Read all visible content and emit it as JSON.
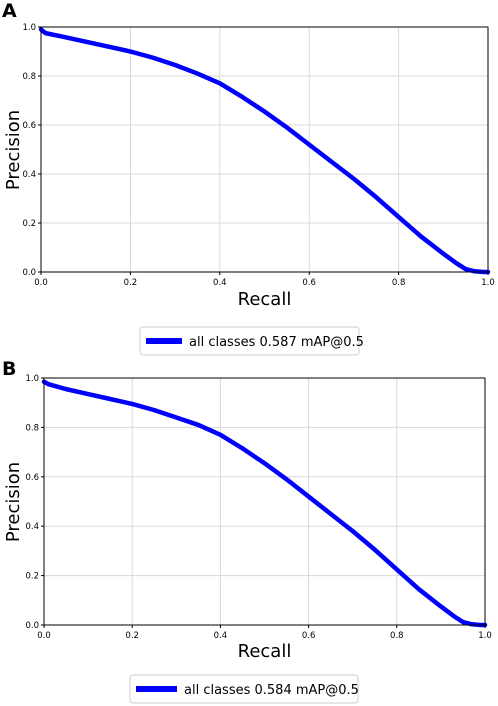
{
  "chart_data": [
    {
      "panel": "A",
      "type": "line",
      "title": "",
      "xlabel": "Recall",
      "ylabel": "Precision",
      "xlim": [
        0.0,
        1.0
      ],
      "ylim": [
        0.0,
        1.0
      ],
      "xticks": [
        "0.0",
        "0.2",
        "0.4",
        "0.6",
        "0.8",
        "1.0"
      ],
      "yticks": [
        "0.0",
        "0.2",
        "0.4",
        "0.6",
        "0.8",
        "1.0"
      ],
      "grid": true,
      "legend_position": "below",
      "series": [
        {
          "name": "all classes 0.587 mAP@0.5",
          "color": "#0000ff",
          "x": [
            0.0,
            0.01,
            0.05,
            0.1,
            0.15,
            0.2,
            0.25,
            0.3,
            0.35,
            0.4,
            0.45,
            0.5,
            0.55,
            0.6,
            0.65,
            0.7,
            0.75,
            0.8,
            0.85,
            0.9,
            0.93,
            0.95,
            0.97,
            0.99,
            1.0
          ],
          "y": [
            0.99,
            0.975,
            0.96,
            0.94,
            0.92,
            0.9,
            0.875,
            0.845,
            0.81,
            0.77,
            0.715,
            0.655,
            0.59,
            0.52,
            0.45,
            0.38,
            0.305,
            0.225,
            0.145,
            0.075,
            0.035,
            0.012,
            0.003,
            0.0,
            0.0
          ]
        }
      ]
    },
    {
      "panel": "B",
      "type": "line",
      "title": "",
      "xlabel": "Recall",
      "ylabel": "Precision",
      "xlim": [
        0.0,
        1.0
      ],
      "ylim": [
        0.0,
        1.0
      ],
      "xticks": [
        "0.0",
        "0.2",
        "0.4",
        "0.6",
        "0.8",
        "1.0"
      ],
      "yticks": [
        "0.0",
        "0.2",
        "0.4",
        "0.6",
        "0.8",
        "1.0"
      ],
      "grid": true,
      "legend_position": "below",
      "series": [
        {
          "name": "all classes 0.584 mAP@0.5",
          "color": "#0000ff",
          "x": [
            0.0,
            0.01,
            0.05,
            0.1,
            0.15,
            0.2,
            0.25,
            0.3,
            0.35,
            0.4,
            0.45,
            0.5,
            0.55,
            0.6,
            0.65,
            0.7,
            0.75,
            0.8,
            0.85,
            0.9,
            0.93,
            0.95,
            0.97,
            0.99,
            1.0
          ],
          "y": [
            0.985,
            0.975,
            0.955,
            0.935,
            0.915,
            0.895,
            0.87,
            0.84,
            0.81,
            0.77,
            0.715,
            0.655,
            0.59,
            0.52,
            0.45,
            0.38,
            0.305,
            0.225,
            0.145,
            0.075,
            0.035,
            0.012,
            0.003,
            0.0,
            0.0
          ]
        }
      ]
    }
  ]
}
